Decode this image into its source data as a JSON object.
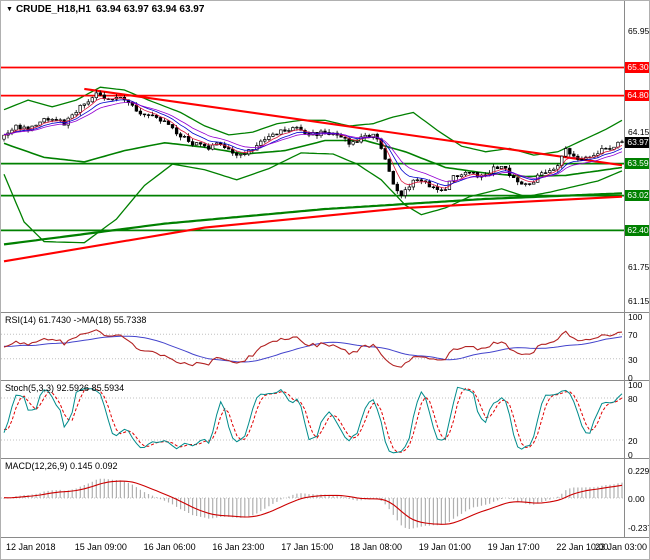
{
  "header": {
    "dropdown_glyph": "▼",
    "title": "CRUDE_H18,H1",
    "quote": "63.94 63.97 63.94 63.97"
  },
  "colors": {
    "up_candle": "#ffffff",
    "down_candle": "#000000",
    "candle_outline": "#000000",
    "band_green": "#008000",
    "trend_red": "#ff0000",
    "ema_blue": "#0000cd",
    "ema_purple": "#9400d3",
    "ema_red": "#dc143c",
    "rsi_line": "#b22222",
    "rsi_ma": "#4444cc",
    "stoch_main": "#008b8b",
    "stoch_signal": "#e00000",
    "macd_hist": "#b0b0b0",
    "macd_signal": "#cc0000",
    "level_dotted": "#c0c0c0"
  },
  "price_axis": {
    "plain_ticks": [
      {
        "label": "65.95",
        "value": 65.95
      },
      {
        "label": "64.15",
        "value": 64.15
      },
      {
        "label": "61.75",
        "value": 61.75
      },
      {
        "label": "61.15",
        "value": 61.15
      }
    ],
    "badges": [
      {
        "label": "65.30",
        "value": 65.3,
        "color": "#ff0000"
      },
      {
        "label": "64.80",
        "value": 64.8,
        "color": "#ff0000"
      },
      {
        "label": "63.97",
        "value": 63.97,
        "color": "#000000"
      },
      {
        "label": "63.59",
        "value": 63.59,
        "color": "#008000"
      },
      {
        "label": "63.02",
        "value": 63.02,
        "color": "#008000"
      },
      {
        "label": "62.40",
        "value": 62.4,
        "color": "#008000"
      }
    ]
  },
  "time_axis": {
    "labels": [
      "12 Jan 2018",
      "15 Jan 09:00",
      "16 Jan 06:00",
      "16 Jan 23:00",
      "17 Jan 15:00",
      "18 Jan 08:00",
      "19 Jan 01:00",
      "19 Jan 17:00",
      "22 Jan 10:00",
      "23 Jan 03:00"
    ]
  },
  "panels": {
    "rsi": {
      "label": "RSI(14) 61.7430 ->MA(18) 55.7338",
      "ticks": [
        {
          "label": "100",
          "value": 100
        },
        {
          "label": "70",
          "value": 70
        },
        {
          "label": "30",
          "value": 30
        },
        {
          "label": "0",
          "value": 0
        }
      ],
      "levels": [
        70,
        30
      ]
    },
    "stoch": {
      "label": "Stoch(5,3,3) 92.5926 85.5934",
      "ticks": [
        {
          "label": "100",
          "value": 100
        },
        {
          "label": "80",
          "value": 80
        },
        {
          "label": "20",
          "value": 20
        },
        {
          "label": "0",
          "value": 0
        }
      ],
      "levels": [
        80,
        20
      ]
    },
    "macd": {
      "label": "MACD(12,26,9) 0.145 0.092",
      "ticks": [
        {
          "label": "0.229",
          "value": 0.229
        },
        {
          "label": "0.00",
          "value": 0
        },
        {
          "label": "-0.237",
          "value": -0.237
        }
      ],
      "levels": [
        0
      ]
    }
  },
  "chart_data": {
    "type": "candlestick",
    "symbol": "CRUDE_H18",
    "timeframe": "H1",
    "title": "CRUDE_H18,H1 63.94 63.97 63.94 63.97",
    "price_range": [
      61.0,
      66.2
    ],
    "num_candles": 155,
    "wiggle": 0.045,
    "close_anchors": [
      [
        0,
        64.12
      ],
      [
        3,
        64.25
      ],
      [
        6,
        64.18
      ],
      [
        9,
        64.32
      ],
      [
        12,
        64.42
      ],
      [
        15,
        64.3
      ],
      [
        17,
        64.48
      ],
      [
        20,
        64.65
      ],
      [
        23,
        64.82
      ],
      [
        26,
        64.72
      ],
      [
        29,
        64.8
      ],
      [
        32,
        64.62
      ],
      [
        35,
        64.45
      ],
      [
        39,
        64.38
      ],
      [
        43,
        64.12
      ],
      [
        47,
        63.96
      ],
      [
        51,
        63.85
      ],
      [
        54,
        63.96
      ],
      [
        58,
        63.72
      ],
      [
        62,
        63.86
      ],
      [
        66,
        64.06
      ],
      [
        69,
        64.16
      ],
      [
        73,
        64.22
      ],
      [
        76,
        64.1
      ],
      [
        80,
        64.16
      ],
      [
        84,
        64.04
      ],
      [
        87,
        63.94
      ],
      [
        90,
        64.1
      ],
      [
        93,
        64.06
      ],
      [
        95,
        63.7
      ],
      [
        97,
        63.18
      ],
      [
        99,
        63.0
      ],
      [
        102,
        63.26
      ],
      [
        104,
        63.32
      ],
      [
        107,
        63.14
      ],
      [
        109,
        63.08
      ],
      [
        112,
        63.34
      ],
      [
        115,
        63.46
      ],
      [
        118,
        63.38
      ],
      [
        121,
        63.46
      ],
      [
        124,
        63.56
      ],
      [
        127,
        63.34
      ],
      [
        129,
        63.2
      ],
      [
        132,
        63.3
      ],
      [
        135,
        63.46
      ],
      [
        138,
        63.56
      ],
      [
        140,
        63.84
      ],
      [
        143,
        63.64
      ],
      [
        146,
        63.74
      ],
      [
        149,
        63.84
      ],
      [
        152,
        63.9
      ],
      [
        154,
        63.97
      ]
    ],
    "overlays": {
      "band_upper_anchors": [
        [
          0,
          64.55
        ],
        [
          6,
          64.72
        ],
        [
          12,
          64.6
        ],
        [
          18,
          64.72
        ],
        [
          24,
          64.95
        ],
        [
          30,
          64.9
        ],
        [
          36,
          64.72
        ],
        [
          44,
          64.5
        ],
        [
          50,
          64.26
        ],
        [
          56,
          64.1
        ],
        [
          62,
          64.15
        ],
        [
          68,
          64.3
        ],
        [
          74,
          64.36
        ],
        [
          80,
          64.36
        ],
        [
          86,
          64.26
        ],
        [
          92,
          64.3
        ],
        [
          97,
          64.42
        ],
        [
          102,
          64.5
        ],
        [
          108,
          64.18
        ],
        [
          114,
          63.9
        ],
        [
          120,
          63.8
        ],
        [
          126,
          63.86
        ],
        [
          132,
          63.74
        ],
        [
          138,
          63.8
        ],
        [
          144,
          64.0
        ],
        [
          150,
          64.2
        ],
        [
          154,
          64.36
        ]
      ],
      "band_lower_anchors": [
        [
          0,
          63.4
        ],
        [
          5,
          62.55
        ],
        [
          10,
          62.2
        ],
        [
          20,
          62.18
        ],
        [
          28,
          62.6
        ],
        [
          35,
          63.2
        ],
        [
          42,
          63.58
        ],
        [
          50,
          63.48
        ],
        [
          58,
          63.3
        ],
        [
          66,
          63.5
        ],
        [
          74,
          63.78
        ],
        [
          82,
          63.76
        ],
        [
          88,
          63.58
        ],
        [
          94,
          63.3
        ],
        [
          100,
          62.85
        ],
        [
          104,
          62.68
        ],
        [
          110,
          62.8
        ],
        [
          116,
          63.0
        ],
        [
          124,
          63.14
        ],
        [
          130,
          63.0
        ],
        [
          136,
          63.08
        ],
        [
          142,
          63.18
        ],
        [
          148,
          63.28
        ],
        [
          154,
          63.46
        ]
      ],
      "ma_mid_anchors": [
        [
          0,
          63.95
        ],
        [
          10,
          63.7
        ],
        [
          20,
          63.62
        ],
        [
          30,
          63.82
        ],
        [
          40,
          63.96
        ],
        [
          50,
          63.88
        ],
        [
          60,
          63.76
        ],
        [
          70,
          63.82
        ],
        [
          80,
          64.0
        ],
        [
          90,
          64.0
        ],
        [
          100,
          63.8
        ],
        [
          110,
          63.52
        ],
        [
          120,
          63.42
        ],
        [
          130,
          63.36
        ],
        [
          140,
          63.38
        ],
        [
          154,
          63.52
        ]
      ],
      "ma_slow_anchors": [
        [
          0,
          62.15
        ],
        [
          40,
          62.52
        ],
        [
          80,
          62.78
        ],
        [
          120,
          62.96
        ],
        [
          154,
          63.06
        ]
      ],
      "h_levels": [
        {
          "price": 65.3,
          "color": "#ff0000"
        },
        {
          "price": 64.8,
          "color": "#ff0000"
        },
        {
          "price": 63.59,
          "color": "#008000"
        },
        {
          "price": 63.02,
          "color": "#008000"
        },
        {
          "price": 62.4,
          "color": "#008000"
        }
      ],
      "trend_down_anchors": [
        [
          20,
          64.92
        ],
        [
          154,
          63.56
        ]
      ],
      "trend_up_anchors": [
        [
          0,
          61.85
        ],
        [
          50,
          62.45
        ],
        [
          100,
          62.8
        ],
        [
          154,
          63.0
        ]
      ]
    },
    "indicators": {
      "rsi": {
        "period": 14,
        "ma_period": 18,
        "current": 61.743,
        "ma_current": 55.7338,
        "range": [
          0,
          100
        ]
      },
      "stoch": {
        "k": 5,
        "d": 3,
        "slowing": 3,
        "current": 92.5926,
        "signal_current": 85.5934,
        "range": [
          0,
          100
        ]
      },
      "macd": {
        "fast": 12,
        "slow": 26,
        "signal": 9,
        "current": 0.145,
        "signal_current": 0.092,
        "range": [
          -0.237,
          0.229
        ]
      }
    }
  }
}
